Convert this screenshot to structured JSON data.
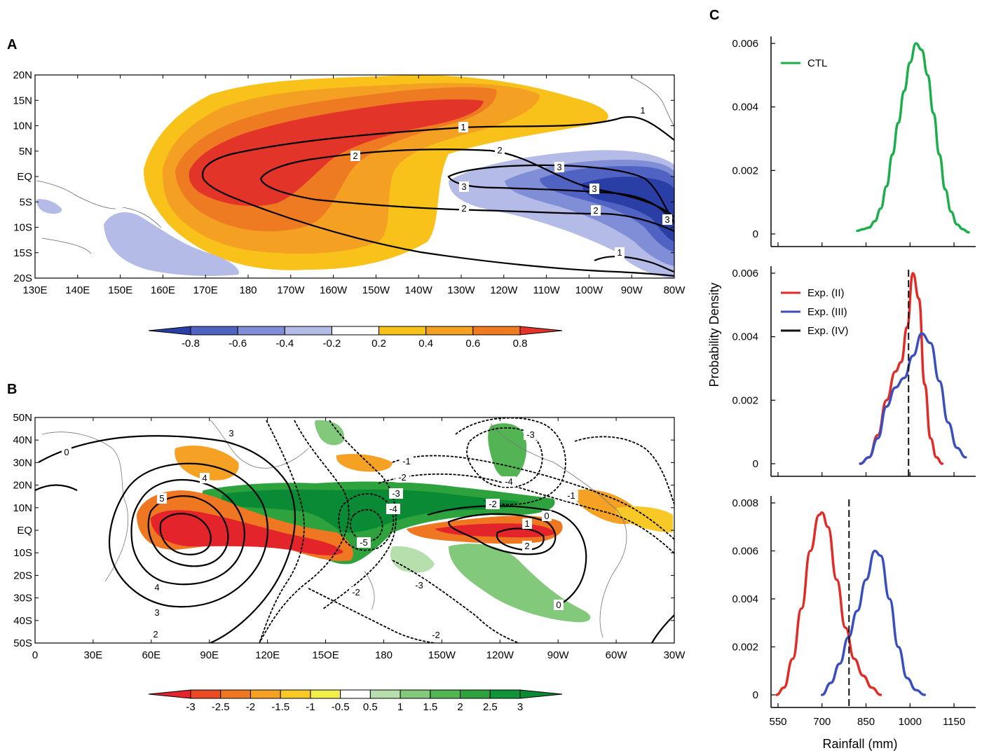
{
  "panels": {
    "A": {
      "letter": "A",
      "lon_ticks": [
        "130E",
        "140E",
        "150E",
        "160E",
        "170E",
        "180",
        "170W",
        "160W",
        "150W",
        "140W",
        "130W",
        "120W",
        "110W",
        "100W",
        "90W",
        "80W"
      ],
      "lat_ticks": [
        "20N",
        "15N",
        "10N",
        "5N",
        "EQ",
        "5S",
        "10S",
        "15S",
        "20S"
      ],
      "colorbar": {
        "ticks": [
          "-0.8",
          "-0.6",
          "-0.4",
          "-0.2",
          "0.2",
          "0.4",
          "0.6",
          "0.8"
        ],
        "colors": [
          "#2a3fa6",
          "#5063c2",
          "#7f8ed6",
          "#b4bbe6",
          "#ffffff",
          "#f9c21a",
          "#f4a023",
          "#ee7a22",
          "#e3342a"
        ]
      },
      "contour_labels": [
        "1",
        "1",
        "2",
        "2",
        "3",
        "3",
        "3",
        "3",
        "2",
        "2",
        "1"
      ]
    },
    "B": {
      "letter": "B",
      "lon_ticks": [
        "0",
        "30E",
        "60E",
        "90E",
        "120E",
        "15OE",
        "180",
        "150W",
        "120W",
        "90W",
        "60W",
        "30W"
      ],
      "lat_ticks": [
        "50N",
        "40N",
        "30N",
        "20N",
        "10N",
        "EQ",
        "10S",
        "20S",
        "30S",
        "40S",
        "50S"
      ],
      "colorbar": {
        "ticks": [
          "-3",
          "-2.5",
          "-2",
          "-1.5",
          "-1",
          "-0.5",
          "0.5",
          "1",
          "1.5",
          "2",
          "2.5",
          "3"
        ],
        "colors": [
          "#e3242b",
          "#ea4a24",
          "#ef7722",
          "#f4a124",
          "#f8c926",
          "#f3ef4a",
          "#ffffff",
          "#b7dfae",
          "#82c97c",
          "#52b453",
          "#2ea23c",
          "#12933a",
          "#0a8a34"
        ]
      },
      "contour_labels": [
        "0",
        "3",
        "4",
        "5",
        "4",
        "3",
        "2",
        "-1",
        "-2",
        "-3",
        "-4",
        "-5",
        "-3",
        "-2",
        "-2",
        "-2",
        "-3",
        "-4",
        "-1",
        "0",
        "1",
        "2",
        "0"
      ]
    },
    "C": {
      "letter": "C",
      "ylabel": "Probability Density",
      "xlabel": "Rainfall (mm)",
      "x_ticks": [
        "550",
        "700",
        "850",
        "1000",
        "1150"
      ]
    }
  },
  "chart_data": [
    {
      "panel": "A",
      "type": "heatmap",
      "title": "",
      "x_axis": "longitude",
      "y_axis": "latitude",
      "xlim": [
        "130E",
        "80W"
      ],
      "ylim": [
        "20S",
        "20N"
      ],
      "colorbar_levels": [
        -0.8,
        -0.6,
        -0.4,
        -0.2,
        0.2,
        0.4,
        0.6,
        0.8
      ],
      "contour_levels": [
        1,
        2,
        3
      ]
    },
    {
      "panel": "B",
      "type": "heatmap",
      "title": "",
      "x_axis": "longitude",
      "y_axis": "latitude",
      "xlim": [
        "0",
        "30W"
      ],
      "ylim": [
        "50S",
        "50N"
      ],
      "colorbar_levels": [
        -3,
        -2.5,
        -2,
        -1.5,
        -1,
        -0.5,
        0.5,
        1,
        1.5,
        2,
        2.5,
        3
      ],
      "contour_levels": [
        -5,
        -4,
        -3,
        -2,
        -1,
        0,
        1,
        2,
        3,
        4,
        5
      ]
    },
    {
      "panel": "C-top",
      "type": "line",
      "xlabel": "Rainfall (mm)",
      "ylabel": "Probability Density",
      "xlim": [
        550,
        1200
      ],
      "ylim": [
        0,
        0.006
      ],
      "y_ticks": [
        "0",
        "0.002",
        "0.004",
        "0.006"
      ],
      "series": [
        {
          "name": "CTL",
          "color": "#1aaf4b",
          "x": [
            820,
            840,
            860,
            880,
            900,
            920,
            940,
            960,
            980,
            1000,
            1020,
            1040,
            1060,
            1080,
            1100,
            1120,
            1140,
            1160,
            1180,
            1200
          ],
          "y": [
            0.0001,
            0.00015,
            0.0002,
            0.0004,
            0.0008,
            0.0015,
            0.0025,
            0.0035,
            0.0045,
            0.0054,
            0.006,
            0.0058,
            0.005,
            0.0038,
            0.0025,
            0.0014,
            0.0007,
            0.0003,
            0.00015,
            5e-05
          ]
        }
      ]
    },
    {
      "panel": "C-middle",
      "type": "line",
      "xlabel": "Rainfall (mm)",
      "ylabel": "Probability Density",
      "xlim": [
        550,
        1200
      ],
      "ylim": [
        0,
        0.006
      ],
      "y_ticks": [
        "0",
        "0.002",
        "0.004",
        "0.006"
      ],
      "series": [
        {
          "name": "Exp. (II)",
          "color": "#e02b27",
          "x": [
            830,
            860,
            890,
            920,
            950,
            970,
            990,
            1010,
            1030,
            1050,
            1070,
            1090,
            1110
          ],
          "y": [
            0.0,
            0.0002,
            0.0009,
            0.002,
            0.0029,
            0.0032,
            0.0043,
            0.006,
            0.0052,
            0.0025,
            0.0008,
            0.0002,
            0.0
          ]
        },
        {
          "name": "Exp. (III)",
          "color": "#3a4fbf",
          "x": [
            830,
            860,
            890,
            920,
            950,
            980,
            1010,
            1040,
            1070,
            1100,
            1130,
            1160,
            1190
          ],
          "y": [
            0.0,
            0.0002,
            0.0008,
            0.0018,
            0.0024,
            0.0027,
            0.0034,
            0.0041,
            0.0038,
            0.0026,
            0.0013,
            0.0005,
            0.0002
          ]
        },
        {
          "name": "Exp. (IV)",
          "color": "#111111",
          "style": "dashed",
          "x": [
            995,
            995
          ],
          "y": [
            0,
            0.006
          ]
        }
      ]
    },
    {
      "panel": "C-bottom",
      "type": "line",
      "xlabel": "Rainfall (mm)",
      "ylabel": "Probability Density",
      "xlim": [
        550,
        1200
      ],
      "ylim": [
        0,
        0.008
      ],
      "y_ticks": [
        "0",
        "0.002",
        "0.004",
        "0.006",
        "0.008"
      ],
      "series": [
        {
          "name": "Exp. (II)",
          "color": "#e02b27",
          "x": [
            545,
            570,
            600,
            630,
            660,
            690,
            700,
            720,
            750,
            780,
            810,
            840,
            870,
            900
          ],
          "y": [
            0.0,
            0.0003,
            0.0015,
            0.0036,
            0.006,
            0.0075,
            0.0076,
            0.007,
            0.0048,
            0.0028,
            0.0015,
            0.0008,
            0.0003,
            0.0
          ]
        },
        {
          "name": "Exp. (III)",
          "color": "#3a4fbf",
          "x": [
            700,
            730,
            760,
            790,
            820,
            850,
            880,
            900,
            930,
            960,
            990,
            1020,
            1050
          ],
          "y": [
            0.0,
            0.0005,
            0.0013,
            0.0024,
            0.0035,
            0.0048,
            0.006,
            0.0058,
            0.004,
            0.002,
            0.0007,
            0.0002,
            0.0
          ]
        },
        {
          "name": "Exp. (IV)",
          "color": "#111111",
          "style": "dashed",
          "x": [
            792,
            792
          ],
          "y": [
            0,
            0.008
          ]
        }
      ]
    }
  ]
}
